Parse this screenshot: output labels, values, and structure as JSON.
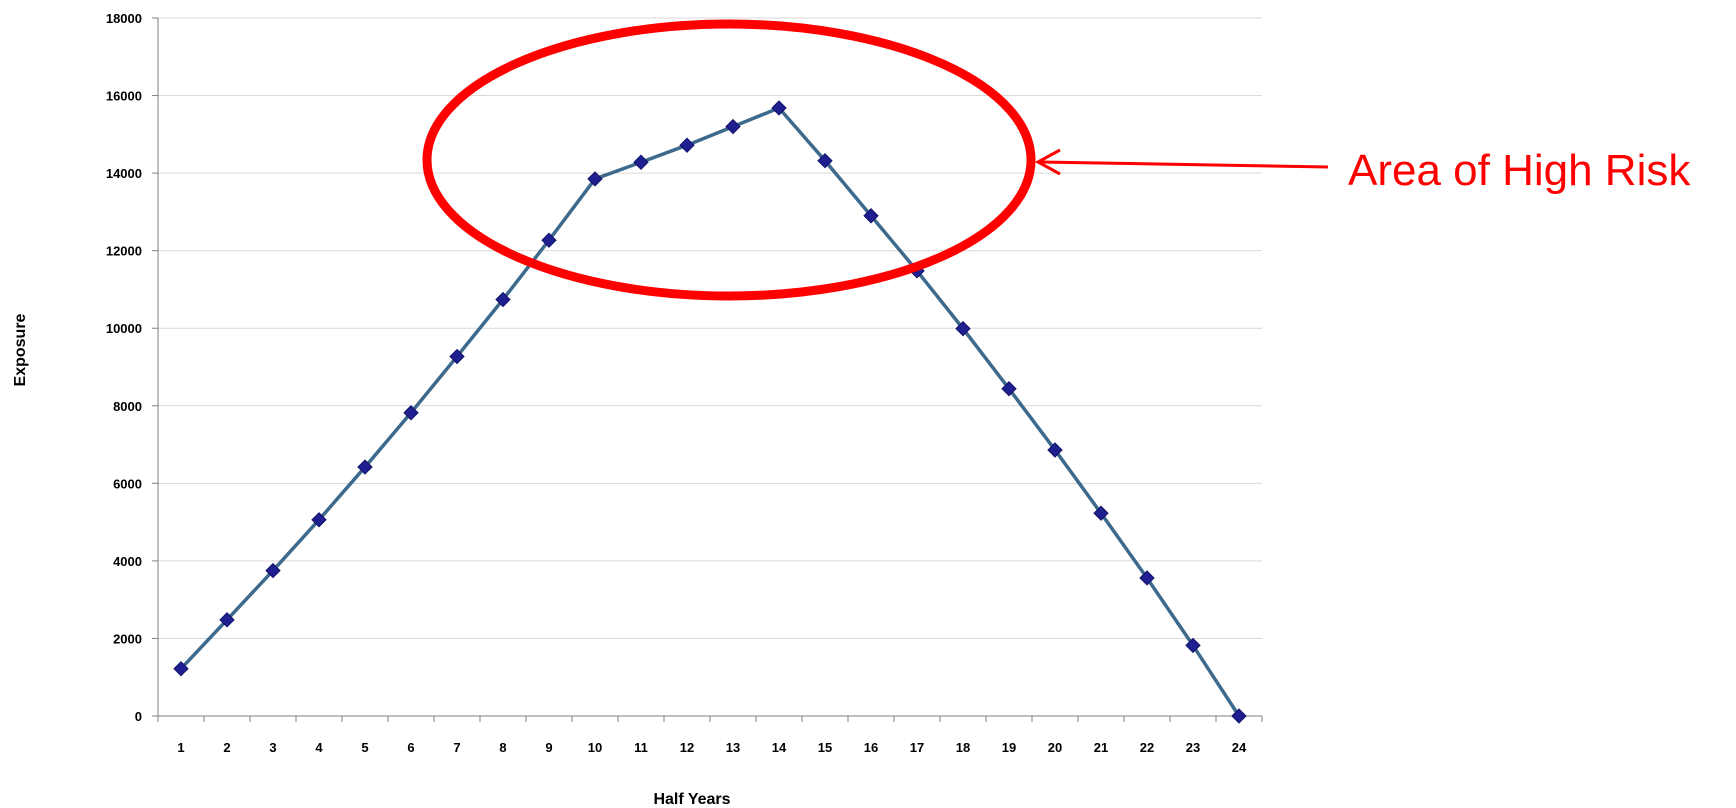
{
  "chart_data": {
    "type": "line",
    "title": "",
    "xlabel": "Half Years",
    "ylabel": "Exposure",
    "x": [
      1,
      2,
      3,
      4,
      5,
      6,
      7,
      8,
      9,
      10,
      11,
      12,
      13,
      14,
      15,
      16,
      17,
      18,
      19,
      20,
      21,
      22,
      23,
      24
    ],
    "series": [
      {
        "values": [
          1220,
          2480,
          3750,
          5060,
          6420,
          7820,
          9270,
          10740,
          12270,
          13850,
          14280,
          14720,
          15200,
          15680,
          14320,
          12900,
          11480,
          9990,
          8440,
          6860,
          5230,
          3560,
          1820,
          0
        ]
      }
    ],
    "ylim": [
      0,
      18000
    ],
    "yticks": [
      0,
      2000,
      4000,
      6000,
      8000,
      10000,
      12000,
      14000,
      16000,
      18000
    ],
    "grid": true,
    "legend": "none",
    "colors": {
      "line": "#3d6a8c",
      "marker": "#1f1f8f",
      "annotation": "#ff0000",
      "grid": "#d9d9d9",
      "axis": "#7f7f7f"
    },
    "annotation": {
      "text": "Area of High Risk"
    }
  }
}
